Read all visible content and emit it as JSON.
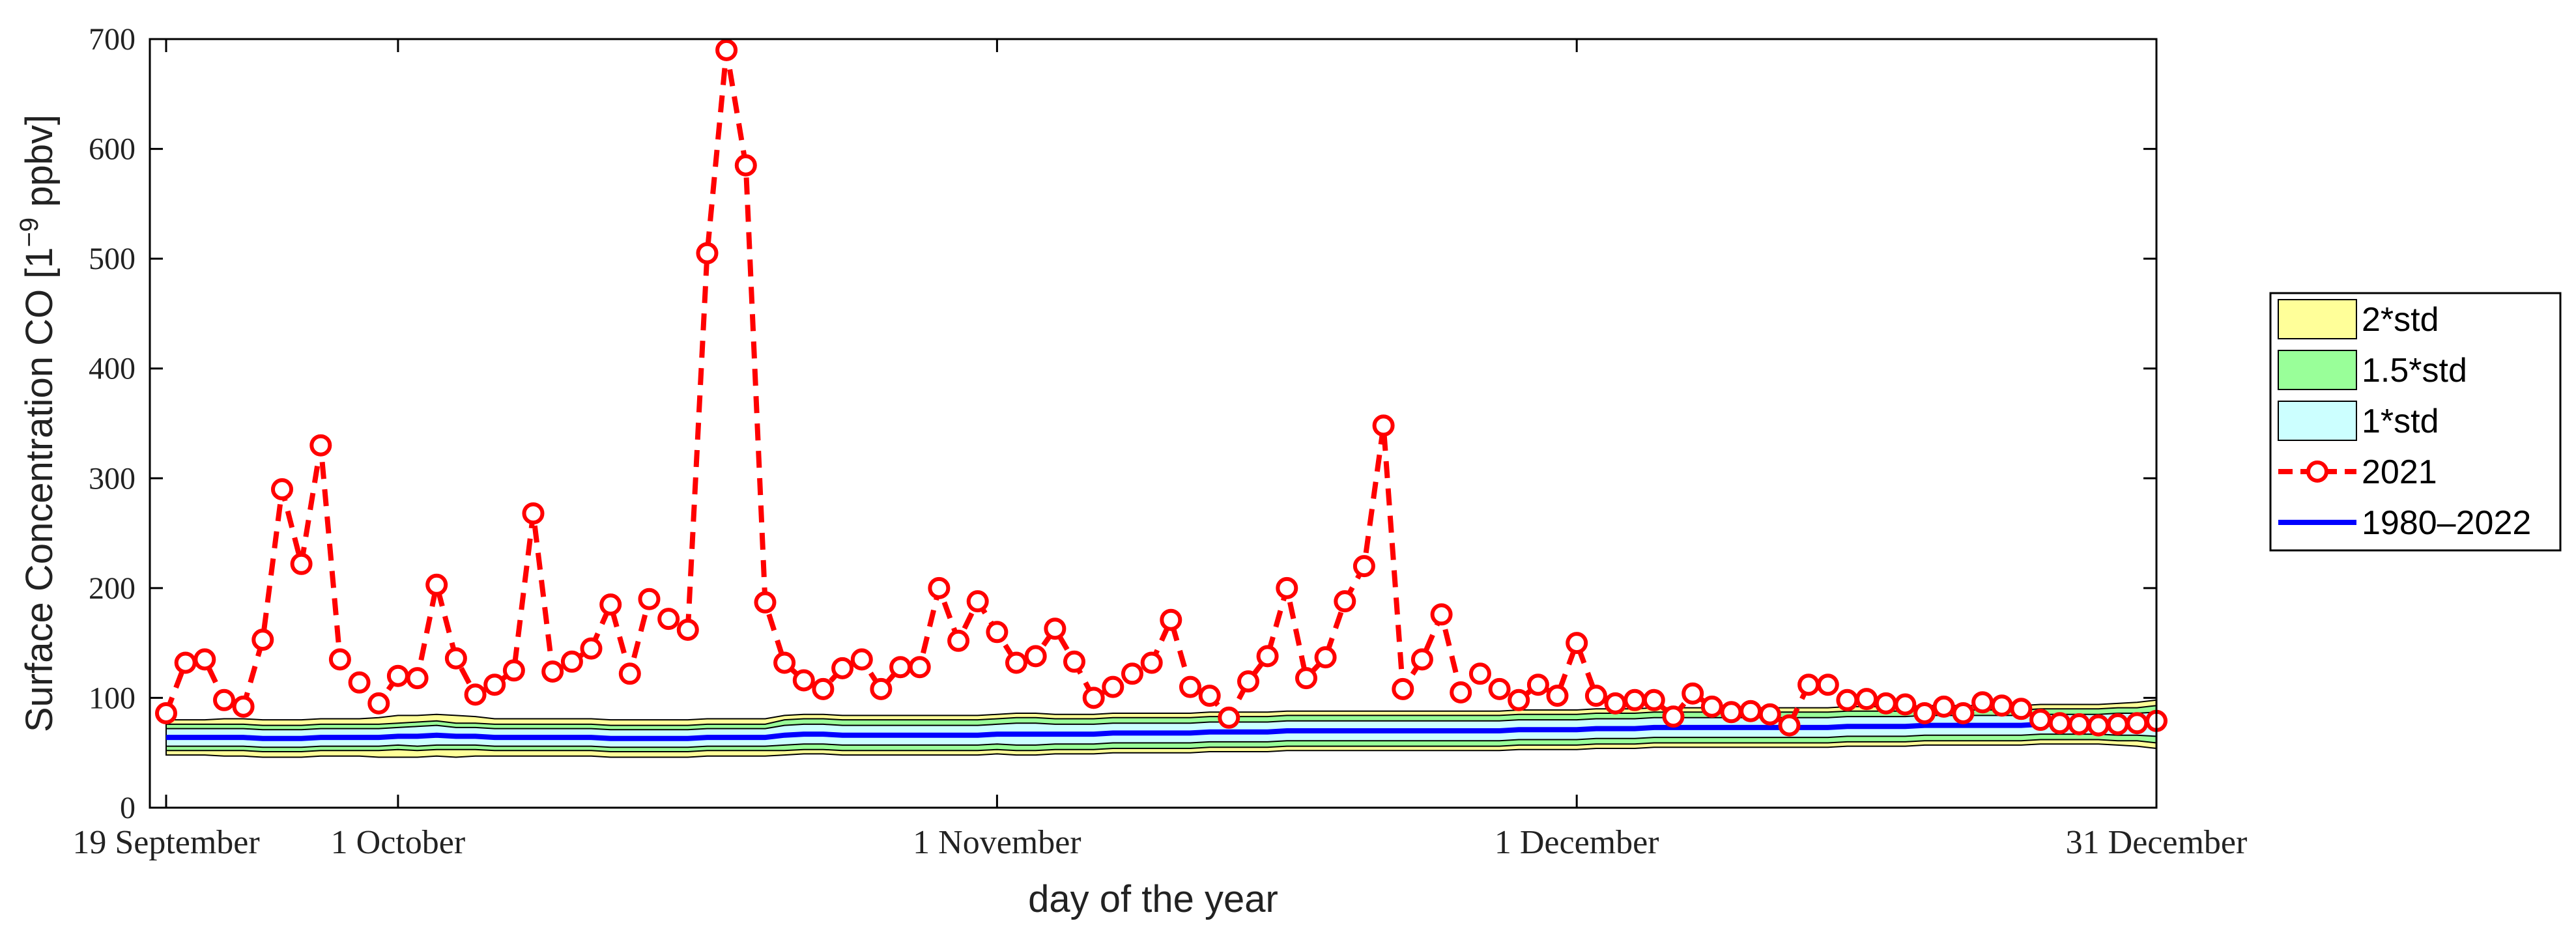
{
  "chart_data": {
    "type": "line",
    "title": "",
    "xlabel": "day of the year",
    "ylabel_main": "Surface Concentration CO [1",
    "ylabel_sup": "−9",
    "ylabel_end": " ppbv]",
    "xlim": [
      262,
      365
    ],
    "ylim": [
      0,
      700
    ],
    "y_ticks": [
      0,
      100,
      200,
      300,
      400,
      500,
      600,
      700
    ],
    "x_ticks": [
      {
        "day": 262,
        "label": "19 September"
      },
      {
        "day": 274,
        "label": "1 October"
      },
      {
        "day": 305,
        "label": "1 November"
      },
      {
        "day": 335,
        "label": "1 December"
      },
      {
        "day": 365,
        "label": "31 December"
      }
    ],
    "legend": {
      "placement": "outside-right",
      "entries": [
        {
          "label": "2*std",
          "kind": "patch",
          "color": "#ffff99"
        },
        {
          "label": "1.5*std",
          "kind": "patch",
          "color": "#99ff99"
        },
        {
          "label": "1*std",
          "kind": "patch",
          "color": "#ccffff"
        },
        {
          "label": "2021",
          "kind": "dashed-circle",
          "color": "#ff0000"
        },
        {
          "label": "1980–2022",
          "kind": "line",
          "color": "#0000ff"
        }
      ]
    },
    "colors": {
      "band_2std": "#ffff99",
      "band_15std": "#99ff99",
      "band_1std": "#ccffff",
      "series_2021": "#ff0000",
      "mean": "#0000ff",
      "axis": "#000000"
    },
    "x": [
      262,
      263,
      264,
      265,
      266,
      267,
      268,
      269,
      270,
      271,
      272,
      273,
      274,
      275,
      276,
      277,
      278,
      279,
      280,
      281,
      282,
      283,
      284,
      285,
      286,
      287,
      288,
      289,
      290,
      291,
      292,
      293,
      294,
      295,
      296,
      297,
      298,
      299,
      300,
      301,
      302,
      303,
      304,
      305,
      306,
      307,
      308,
      309,
      310,
      311,
      312,
      313,
      314,
      315,
      316,
      317,
      318,
      319,
      320,
      321,
      322,
      323,
      324,
      325,
      326,
      327,
      328,
      329,
      330,
      331,
      332,
      333,
      334,
      335,
      336,
      337,
      338,
      339,
      340,
      341,
      342,
      343,
      344,
      345,
      346,
      347,
      348,
      349,
      350,
      351,
      352,
      353,
      354,
      355,
      356,
      357,
      358,
      359,
      360,
      361,
      362,
      363,
      364,
      365
    ],
    "series": [
      {
        "name": "2021",
        "values": [
          86,
          132,
          135,
          98,
          92,
          153,
          290,
          222,
          330,
          135,
          114,
          95,
          120,
          118,
          203,
          136,
          103,
          112,
          125,
          268,
          124,
          133,
          145,
          185,
          122,
          190,
          172,
          162,
          505,
          690,
          585,
          187,
          132,
          116,
          108,
          127,
          135,
          108,
          128,
          128,
          200,
          152,
          188,
          160,
          132,
          138,
          163,
          133,
          100,
          110,
          122,
          132,
          171,
          110,
          102,
          82,
          115,
          138,
          200,
          118,
          137,
          188,
          220,
          348,
          108,
          135,
          176,
          105,
          122,
          108,
          98,
          112,
          102,
          150,
          102,
          95,
          98,
          98,
          83,
          104,
          92,
          87,
          88,
          85,
          75,
          112,
          112,
          98,
          99,
          95,
          94,
          86,
          92,
          86,
          96,
          93,
          90,
          80,
          77,
          76,
          75,
          76,
          77,
          79
        ]
      },
      {
        "name": "1980–2022",
        "values": [
          64,
          64,
          64,
          64,
          64,
          63,
          63,
          63,
          64,
          64,
          64,
          64,
          65,
          65,
          66,
          65,
          65,
          64,
          64,
          64,
          64,
          64,
          64,
          63,
          63,
          63,
          63,
          63,
          64,
          64,
          64,
          64,
          66,
          67,
          67,
          66,
          66,
          66,
          66,
          66,
          66,
          66,
          66,
          67,
          67,
          67,
          67,
          67,
          67,
          68,
          68,
          68,
          68,
          68,
          69,
          69,
          69,
          69,
          70,
          70,
          70,
          70,
          70,
          70,
          70,
          70,
          70,
          70,
          70,
          70,
          71,
          71,
          71,
          71,
          72,
          72,
          72,
          73,
          73,
          73,
          73,
          73,
          73,
          73,
          73,
          73,
          73,
          74,
          74,
          74,
          74,
          75,
          75,
          75,
          75,
          75,
          75,
          76,
          76,
          76,
          76,
          76,
          76,
          76
        ]
      }
    ],
    "band_halfwidths": {
      "std_1": [
        8,
        8,
        8,
        8,
        8,
        8,
        8,
        8,
        8,
        8,
        8,
        8,
        8,
        9,
        9,
        8,
        8,
        8,
        8,
        8,
        8,
        8,
        8,
        8,
        8,
        8,
        8,
        8,
        8,
        8,
        8,
        8,
        9,
        9,
        9,
        9,
        9,
        9,
        9,
        9,
        9,
        9,
        9,
        9,
        10,
        10,
        9,
        9,
        9,
        9,
        9,
        9,
        9,
        9,
        9,
        9,
        9,
        9,
        9,
        9,
        9,
        9,
        9,
        9,
        9,
        9,
        9,
        9,
        9,
        9,
        9,
        9,
        9,
        9,
        9,
        9,
        9,
        9,
        9,
        9,
        9,
        9,
        9,
        9,
        9,
        9,
        9,
        9,
        9,
        9,
        9,
        9,
        9,
        9,
        9,
        9,
        9,
        9,
        9,
        9,
        9,
        10,
        10,
        11
      ],
      "std_15": [
        12,
        12,
        12,
        12,
        12,
        12,
        12,
        12,
        12,
        12,
        12,
        12,
        12,
        13,
        13,
        12,
        12,
        12,
        12,
        12,
        12,
        12,
        12,
        12,
        12,
        12,
        12,
        12,
        12,
        12,
        12,
        12,
        14,
        14,
        14,
        14,
        14,
        14,
        14,
        14,
        14,
        14,
        14,
        14,
        15,
        15,
        14,
        14,
        14,
        14,
        14,
        14,
        14,
        14,
        14,
        14,
        14,
        14,
        14,
        14,
        14,
        14,
        14,
        14,
        14,
        14,
        14,
        14,
        14,
        14,
        14,
        14,
        14,
        14,
        14,
        14,
        14,
        14,
        14,
        14,
        14,
        14,
        14,
        14,
        14,
        14,
        14,
        14,
        14,
        14,
        14,
        14,
        14,
        14,
        14,
        14,
        14,
        14,
        14,
        14,
        14,
        15,
        15,
        17
      ],
      "std_2": [
        16,
        16,
        16,
        17,
        17,
        17,
        17,
        17,
        17,
        17,
        17,
        18,
        19,
        19,
        19,
        19,
        18,
        17,
        17,
        17,
        17,
        17,
        17,
        17,
        17,
        17,
        17,
        17,
        17,
        17,
        17,
        17,
        18,
        18,
        18,
        18,
        18,
        18,
        18,
        18,
        18,
        18,
        18,
        18,
        19,
        19,
        18,
        18,
        18,
        18,
        18,
        18,
        18,
        18,
        18,
        18,
        18,
        18,
        18,
        18,
        18,
        18,
        18,
        18,
        18,
        18,
        18,
        18,
        18,
        18,
        18,
        18,
        18,
        18,
        18,
        18,
        18,
        18,
        18,
        18,
        18,
        18,
        18,
        18,
        18,
        18,
        18,
        18,
        18,
        18,
        18,
        18,
        18,
        18,
        18,
        18,
        18,
        18,
        18,
        18,
        18,
        19,
        20,
        22
      ]
    }
  }
}
